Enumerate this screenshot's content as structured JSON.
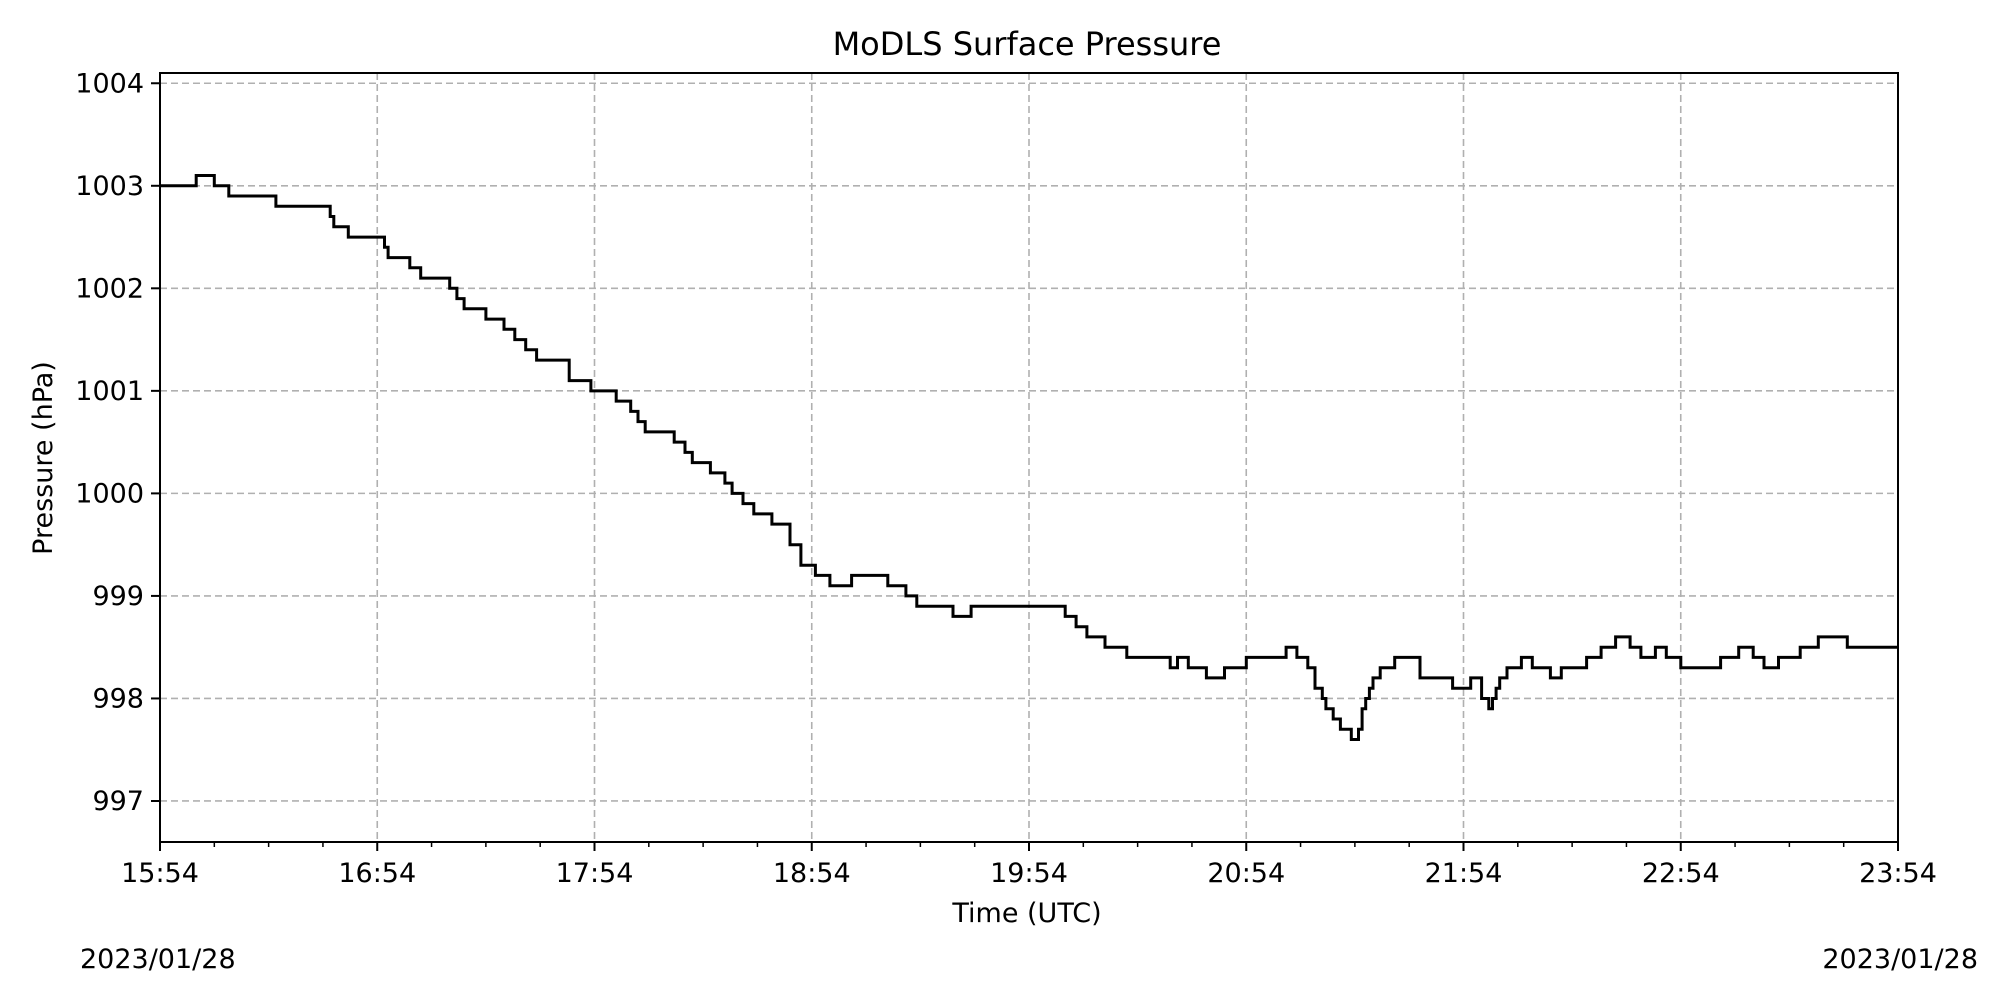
{
  "chart_data": {
    "type": "line",
    "title": "MoDLS Surface Pressure",
    "xlabel": "Time (UTC)",
    "ylabel": "Pressure (hPa)",
    "x_unit": "time (UTC)",
    "y_unit": "hPa",
    "xlim": [
      "15:54",
      "23:54"
    ],
    "ylim": [
      996.6,
      1004.1
    ],
    "grid": true,
    "grid_style": "dashed",
    "line_color": "#000000",
    "line_style": "steps",
    "x_ticks": [
      "15:54",
      "16:54",
      "17:54",
      "18:54",
      "19:54",
      "20:54",
      "21:54",
      "22:54",
      "23:54"
    ],
    "y_ticks": [
      997,
      998,
      999,
      1000,
      1001,
      1002,
      1003,
      1004
    ],
    "date_left": "2023/01/28",
    "date_right": "2023/01/28",
    "series": [
      {
        "x": [
          "15:54",
          "16:04",
          "16:09",
          "16:13",
          "16:16",
          "16:26",
          "16:41",
          "16:42",
          "16:46",
          "16:56",
          "16:57",
          "16:59",
          "17:03",
          "17:06",
          "17:10",
          "17:14",
          "17:16",
          "17:18",
          "17:20",
          "17:24",
          "17:29",
          "17:32",
          "17:35",
          "17:36",
          "17:38",
          "17:40",
          "17:47",
          "17:53",
          "17:57",
          "18:00",
          "18:04",
          "18:06",
          "18:08",
          "18:16",
          "18:19",
          "18:21",
          "18:26",
          "18:30",
          "18:32",
          "18:35",
          "18:38",
          "18:41",
          "18:43",
          "18:48",
          "18:51",
          "18:55",
          "18:59",
          "19:05",
          "19:10",
          "19:15",
          "19:20",
          "19:23",
          "19:25",
          "19:30",
          "19:33",
          "19:38",
          "19:40",
          "19:53",
          "20:04",
          "20:07",
          "20:10",
          "20:15",
          "20:21",
          "20:24",
          "20:28",
          "20:30",
          "20:33",
          "20:35",
          "20:38",
          "20:43",
          "20:48",
          "20:54",
          "21:00",
          "21:05",
          "21:08",
          "21:11",
          "21:13",
          "21:15",
          "21:16",
          "21:18",
          "21:20",
          "21:22",
          "21:23",
          "21:25",
          "21:26",
          "21:27",
          "21:28",
          "21:29",
          "21:31",
          "21:35",
          "21:42",
          "21:51",
          "21:56",
          "21:58",
          "21:59",
          "22:01",
          "22:02",
          "22:03",
          "22:04",
          "22:06",
          "22:10",
          "22:13",
          "22:18",
          "22:21",
          "22:23",
          "22:28",
          "22:32",
          "22:36",
          "22:40",
          "22:43",
          "22:47",
          "22:50",
          "22:54",
          "22:57",
          "22:59",
          "23:05",
          "23:10",
          "23:14",
          "23:17",
          "23:21",
          "23:24",
          "23:27",
          "23:32",
          "23:38",
          "23:40",
          "23:54"
        ],
        "y": [
          1003.0,
          1003.1,
          1003.0,
          1002.9,
          1002.9,
          1002.8,
          1002.7,
          1002.6,
          1002.5,
          1002.4,
          1002.3,
          1002.3,
          1002.2,
          1002.1,
          1002.1,
          1002.0,
          1001.9,
          1001.8,
          1001.8,
          1001.7,
          1001.6,
          1001.5,
          1001.4,
          1001.4,
          1001.3,
          1001.3,
          1001.1,
          1001.0,
          1001.0,
          1000.9,
          1000.8,
          1000.7,
          1000.6,
          1000.5,
          1000.4,
          1000.3,
          1000.2,
          1000.1,
          1000.0,
          999.9,
          999.8,
          999.8,
          999.7,
          999.5,
          999.3,
          999.2,
          999.1,
          999.2,
          999.2,
          999.1,
          999.0,
          998.9,
          998.9,
          998.9,
          998.8,
          998.9,
          998.9,
          998.9,
          998.8,
          998.7,
          998.6,
          998.5,
          998.4,
          998.4,
          998.4,
          998.4,
          998.3,
          998.4,
          998.3,
          998.2,
          998.3,
          998.4,
          998.4,
          998.5,
          998.4,
          998.3,
          998.1,
          998.0,
          997.9,
          997.8,
          997.7,
          997.7,
          997.6,
          997.7,
          997.9,
          998.0,
          998.1,
          998.2,
          998.3,
          998.4,
          998.2,
          998.1,
          998.2,
          998.2,
          998.0,
          997.9,
          998.0,
          998.1,
          998.2,
          998.3,
          998.4,
          998.3,
          998.2,
          998.3,
          998.3,
          998.4,
          998.5,
          998.6,
          998.5,
          998.4,
          998.5,
          998.4,
          998.3,
          998.3,
          998.3,
          998.4,
          998.5,
          998.4,
          998.3,
          998.4,
          998.4,
          998.5,
          998.6,
          998.6,
          998.5,
          998.5
        ]
      }
    ]
  }
}
